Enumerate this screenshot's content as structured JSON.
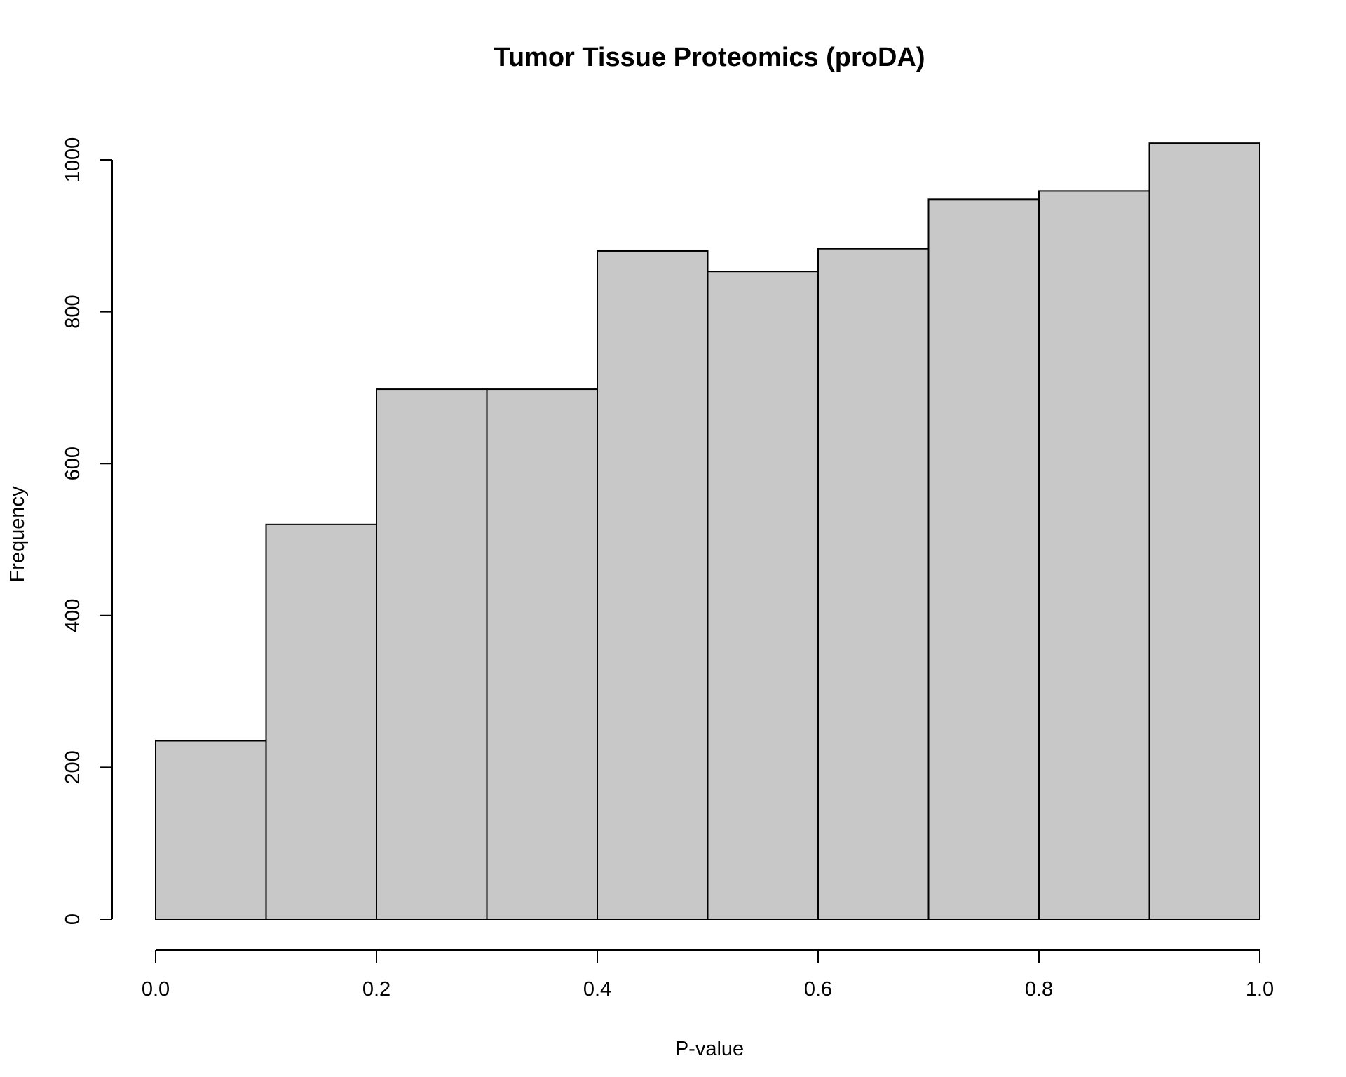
{
  "chart_data": {
    "type": "bar",
    "title": "Tumor Tissue Proteomics (proDA)",
    "xlabel": "P-value",
    "ylabel": "Frequency",
    "bin_edges": [
      0.0,
      0.1,
      0.2,
      0.3,
      0.4,
      0.5,
      0.6,
      0.7,
      0.8,
      0.9,
      1.0
    ],
    "values": [
      235,
      520,
      698,
      698,
      880,
      853,
      883,
      948,
      959,
      1022
    ],
    "xlim": [
      0.0,
      1.0
    ],
    "ylim": [
      0,
      1022
    ],
    "x_ticks": [
      "0.0",
      "0.2",
      "0.4",
      "0.6",
      "0.8",
      "1.0"
    ],
    "y_ticks": [
      "0",
      "200",
      "400",
      "600",
      "800",
      "1000"
    ],
    "bar_color": "#c8c8c8",
    "grid": false
  }
}
